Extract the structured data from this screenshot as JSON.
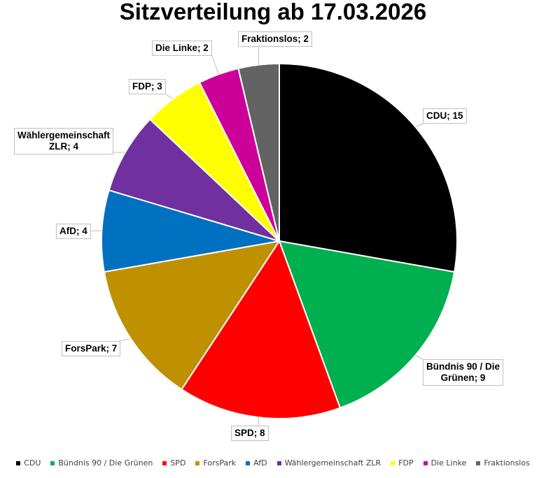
{
  "chart_data": {
    "type": "pie",
    "title": "Sitzverteilung ab 17.03.2026",
    "categories": [
      "CDU",
      "Bündnis 90 / Die Grünen",
      "SPD",
      "ForsPark",
      "AfD",
      "Wählergemeinschaft ZLR",
      "FDP",
      "Die Linke",
      "Fraktionslos"
    ],
    "values": [
      15,
      9,
      8,
      7,
      4,
      4,
      3,
      2,
      2
    ],
    "colors": [
      "#000000",
      "#00b050",
      "#ff0000",
      "#bf9000",
      "#0070c0",
      "#7030a0",
      "#ffff00",
      "#cc0099",
      "#636363"
    ],
    "data_labels": [
      "CDU; 15",
      "Bündnis 90 / Die\nGrünen; 9",
      "SPD; 8",
      "ForsPark; 7",
      "AfD; 4",
      "Wählergemeinschaft\nZLR; 4",
      "FDP; 3",
      "Die Linke; 2",
      "Fraktionslos; 2"
    ],
    "legend_position": "bottom",
    "start_angle_deg": 0,
    "direction": "clockwise"
  }
}
